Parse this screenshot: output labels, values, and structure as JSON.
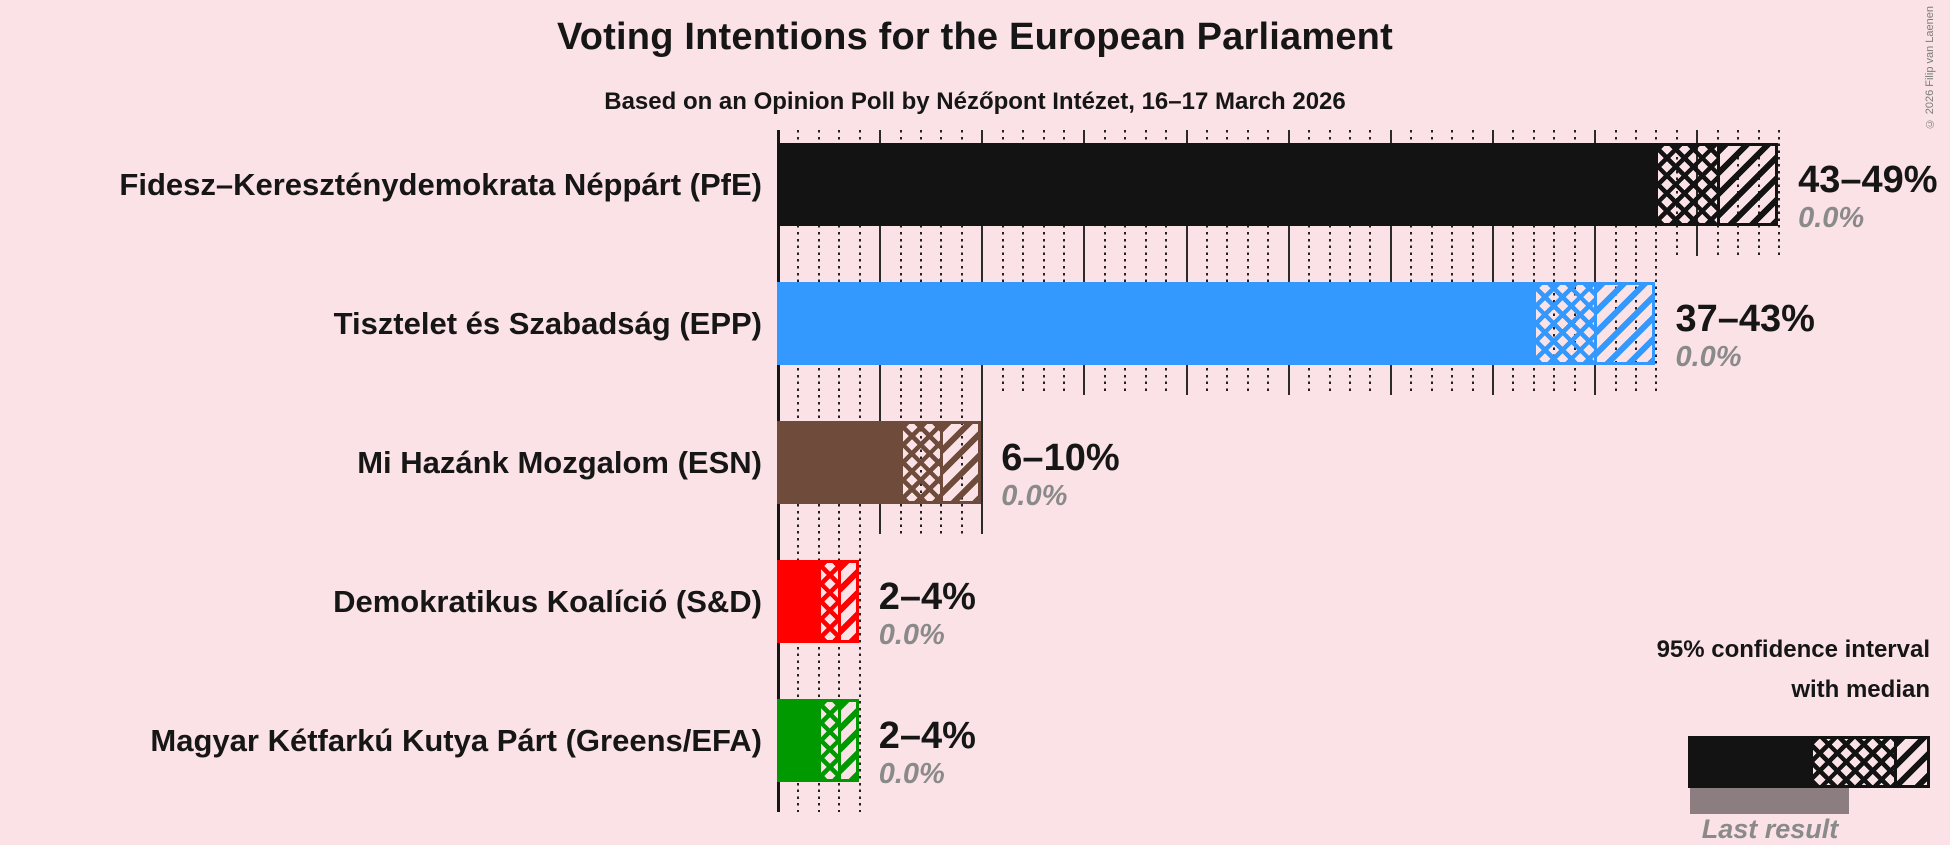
{
  "title": "Voting Intentions for the European Parliament",
  "subtitle": "Based on an Opinion Poll by Nézőpont Intézet, 16–17 March 2026",
  "copyright": "© 2026 Filip van Laenen",
  "legend": {
    "line1": "95% confidence interval",
    "line2": "with median",
    "last_result_label": "Last result"
  },
  "colors": {
    "background": "#FAE2E7",
    "text": "#161616",
    "muted_text": "#8A8A8A",
    "last_result_bar": "#8C7E80"
  },
  "chart_data": {
    "type": "bar",
    "orientation": "horizontal",
    "unit": "%",
    "title": "Voting Intentions for the European Parliament",
    "subtitle": "Based on an Opinion Poll by Nézőpont Intézet, 16–17 March 2026",
    "x_axis": {
      "min": 0,
      "max": 49,
      "major_step": 5,
      "minor_step": 1,
      "gridlines": true,
      "tick_labels_shown": false
    },
    "legend_position": "bottom-right",
    "bars": [
      {
        "party": "Fidesz–Kereszténydemokrata Néppárt (PfE)",
        "color": "#131313",
        "ci_low": 43,
        "median": 46,
        "ci_high": 49,
        "range_label": "43–49%",
        "last_result": 0.0,
        "last_result_label": "0.0%"
      },
      {
        "party": "Tisztelet és Szabadság (EPP)",
        "color": "#3399FF",
        "ci_low": 37,
        "median": 40,
        "ci_high": 43,
        "range_label": "37–43%",
        "last_result": 0.0,
        "last_result_label": "0.0%"
      },
      {
        "party": "Mi Hazánk Mozgalom (ESN)",
        "color": "#6F4B3C",
        "ci_low": 6,
        "median": 8,
        "ci_high": 10,
        "range_label": "6–10%",
        "last_result": 0.0,
        "last_result_label": "0.0%"
      },
      {
        "party": "Demokratikus Koalíció (S&D)",
        "color": "#FF0000",
        "ci_low": 2,
        "median": 3,
        "ci_high": 4,
        "range_label": "2–4%",
        "last_result": 0.0,
        "last_result_label": "0.0%"
      },
      {
        "party": "Magyar Kétfarkú Kutya Párt (Greens/EFA)",
        "color": "#009900",
        "ci_low": 2,
        "median": 3,
        "ci_high": 4,
        "range_label": "2–4%",
        "last_result": 0.0,
        "last_result_label": "0.0%"
      }
    ]
  }
}
